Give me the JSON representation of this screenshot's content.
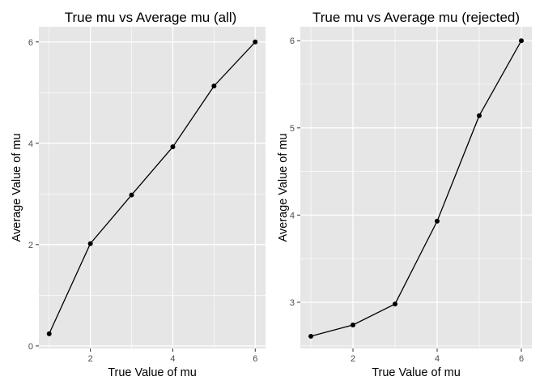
{
  "chart_data": [
    {
      "type": "line",
      "title": "True mu vs Average mu (all)",
      "xlabel": "True Value of mu",
      "ylabel": "Average Value of mu",
      "x": [
        1,
        2,
        3,
        4,
        5,
        6
      ],
      "series": [
        {
          "values": [
            0.24,
            2.02,
            2.98,
            3.93,
            5.13,
            6.0
          ]
        }
      ],
      "xlim": [
        0.75,
        6.25
      ],
      "ylim": [
        -0.05,
        6.3
      ],
      "xticks": [
        "2",
        "4",
        "6"
      ],
      "yticks": [
        "0",
        "2",
        "4",
        "6"
      ],
      "grid": true,
      "markers": true
    },
    {
      "type": "line",
      "title": "True mu vs Average mu (rejected)",
      "xlabel": "True Value of mu",
      "ylabel": "Average Value of mu",
      "x": [
        1,
        2,
        3,
        4,
        5,
        6
      ],
      "series": [
        {
          "values": [
            2.61,
            2.74,
            2.98,
            3.93,
            5.14,
            6.0
          ]
        }
      ],
      "xlim": [
        0.75,
        6.25
      ],
      "ylim": [
        2.47,
        6.16
      ],
      "xticks": [
        "2",
        "4",
        "6"
      ],
      "yticks": [
        "3",
        "4",
        "5",
        "6"
      ],
      "grid": true,
      "markers": true
    }
  ],
  "colors": {
    "panel_background": "#e6e6e6",
    "grid_major": "#ffffff",
    "line": "#000000",
    "point": "#000000",
    "tick_label": "#4d4d4d"
  }
}
